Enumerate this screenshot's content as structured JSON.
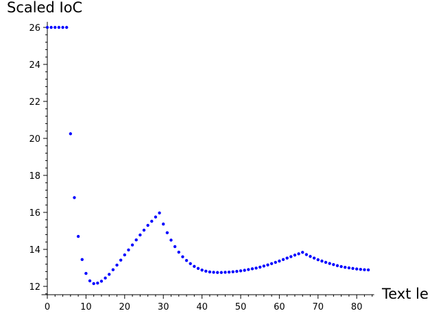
{
  "chart_data": {
    "type": "scatter",
    "xlabel": "Text le",
    "ylabel": "Scaled IoC",
    "xlim": [
      -1.5,
      84.5
    ],
    "ylim": [
      11.55,
      26.3
    ],
    "xticks": [
      0,
      10,
      20,
      30,
      40,
      50,
      60,
      70,
      80
    ],
    "xtick_labels": [
      "0",
      "10",
      "20",
      "30",
      "40",
      "50",
      "60",
      "70",
      "80"
    ],
    "yticks": [
      12,
      14,
      16,
      18,
      20,
      22,
      24,
      26
    ],
    "ytick_labels": [
      "12",
      "14",
      "16",
      "18",
      "20",
      "22",
      "24",
      "26"
    ],
    "grid": false,
    "marker_color": "#0000ff",
    "series": [
      {
        "x": [
          0,
          1,
          2,
          3,
          4,
          5,
          6,
          7,
          8,
          9,
          10,
          11,
          12,
          13,
          14,
          15,
          16,
          17,
          18,
          19,
          20,
          21,
          22,
          23,
          24,
          25,
          26,
          27,
          28,
          29,
          30,
          31,
          32,
          33,
          34,
          35,
          36,
          37,
          38,
          39,
          40,
          41,
          42,
          43,
          44,
          45,
          46,
          47,
          48,
          49,
          50,
          51,
          52,
          53,
          54,
          55,
          56,
          57,
          58,
          59,
          60,
          61,
          62,
          63,
          64,
          65,
          66,
          67,
          68,
          69,
          70,
          71,
          72,
          73,
          74,
          75,
          76,
          77,
          78,
          79,
          80,
          81,
          82,
          83
        ],
        "y": [
          26.0,
          26.0,
          26.0,
          26.0,
          26.0,
          26.0,
          20.25,
          16.8,
          14.7,
          13.45,
          12.7,
          12.3,
          12.15,
          12.18,
          12.28,
          12.45,
          12.65,
          12.9,
          13.15,
          13.42,
          13.7,
          13.97,
          14.24,
          14.51,
          14.78,
          15.04,
          15.3,
          15.52,
          15.75,
          15.97,
          15.37,
          14.9,
          14.5,
          14.15,
          13.85,
          13.6,
          13.4,
          13.23,
          13.08,
          12.97,
          12.88,
          12.82,
          12.78,
          12.76,
          12.75,
          12.75,
          12.76,
          12.77,
          12.79,
          12.81,
          12.84,
          12.87,
          12.91,
          12.95,
          12.99,
          13.04,
          13.1,
          13.16,
          13.23,
          13.3,
          13.37,
          13.45,
          13.53,
          13.61,
          13.69,
          13.76,
          13.84,
          13.72,
          13.62,
          13.53,
          13.44,
          13.37,
          13.3,
          13.24,
          13.18,
          13.12,
          13.07,
          13.03,
          13.0,
          12.97,
          12.94,
          12.92,
          12.9,
          12.89
        ]
      }
    ]
  }
}
